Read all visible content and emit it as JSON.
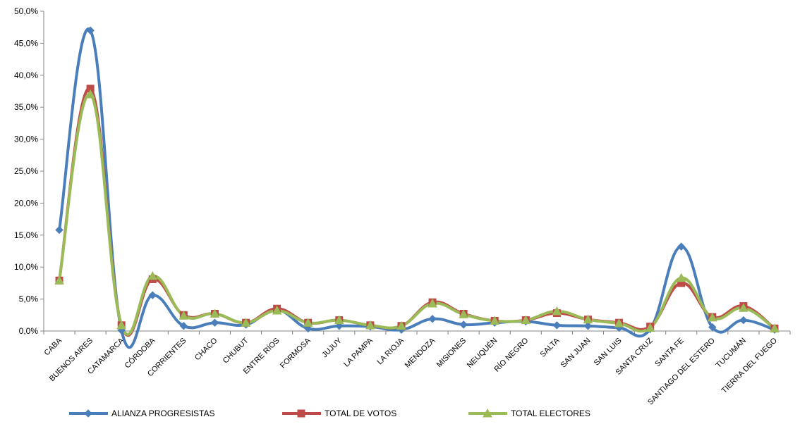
{
  "chart_data": {
    "type": "line",
    "title": "",
    "xlabel": "",
    "ylabel": "",
    "ylim": [
      0,
      50
    ],
    "yticks": [
      "0,0%",
      "5,0%",
      "10,0%",
      "15,0%",
      "20,0%",
      "25,0%",
      "30,0%",
      "35,0%",
      "40,0%",
      "45,0%",
      "50,0%"
    ],
    "grid": false,
    "legend_position": "bottom",
    "categories": [
      "CABA",
      "BUENOS AIRES",
      "CATAMARCA",
      "CÓRDOBA",
      "CORRIENTES",
      "CHACO",
      "CHUBUT",
      "ENTRE RÍOS",
      "FORMOSA",
      "JUJUY",
      "LA PAMPA",
      "LA RIOJA",
      "MENDOZA",
      "MISIONES",
      "NEUQUÉN",
      "RÍO NEGRO",
      "SALTA",
      "SAN JUAN",
      "SAN LUIS",
      "SANTA CRUZ",
      "SANTA FE",
      "SANTIAGO DEL ESTERO",
      "TUCUMÁN",
      "TIERRA DEL FUEGO"
    ],
    "series": [
      {
        "name": "ALIANZA PROGRESISTAS",
        "color": "#4A7EBB",
        "marker": "diamond",
        "values": [
          15.8,
          47.0,
          0.1,
          5.6,
          0.8,
          1.3,
          1.0,
          3.3,
          0.4,
          0.8,
          0.7,
          0.2,
          1.9,
          1.0,
          1.3,
          1.5,
          0.9,
          0.8,
          0.5,
          0.3,
          13.2,
          0.6,
          1.7,
          0.2
        ]
      },
      {
        "name": "TOTAL DE VOTOS",
        "color": "#BE4B48",
        "marker": "square",
        "values": [
          7.9,
          37.9,
          0.9,
          8.1,
          2.5,
          2.7,
          1.3,
          3.5,
          1.3,
          1.7,
          0.9,
          0.8,
          4.5,
          2.7,
          1.6,
          1.7,
          2.8,
          1.8,
          1.3,
          0.7,
          7.5,
          2.2,
          3.9,
          0.4
        ]
      },
      {
        "name": "TOTAL ELECTORES",
        "color": "#9BBB59",
        "marker": "triangle",
        "values": [
          7.9,
          37.0,
          0.9,
          8.6,
          2.4,
          2.7,
          1.3,
          3.2,
          1.3,
          1.7,
          0.9,
          0.8,
          4.3,
          2.6,
          1.6,
          1.7,
          3.1,
          1.8,
          1.2,
          0.5,
          8.3,
          2.1,
          3.6,
          0.4
        ]
      }
    ]
  }
}
